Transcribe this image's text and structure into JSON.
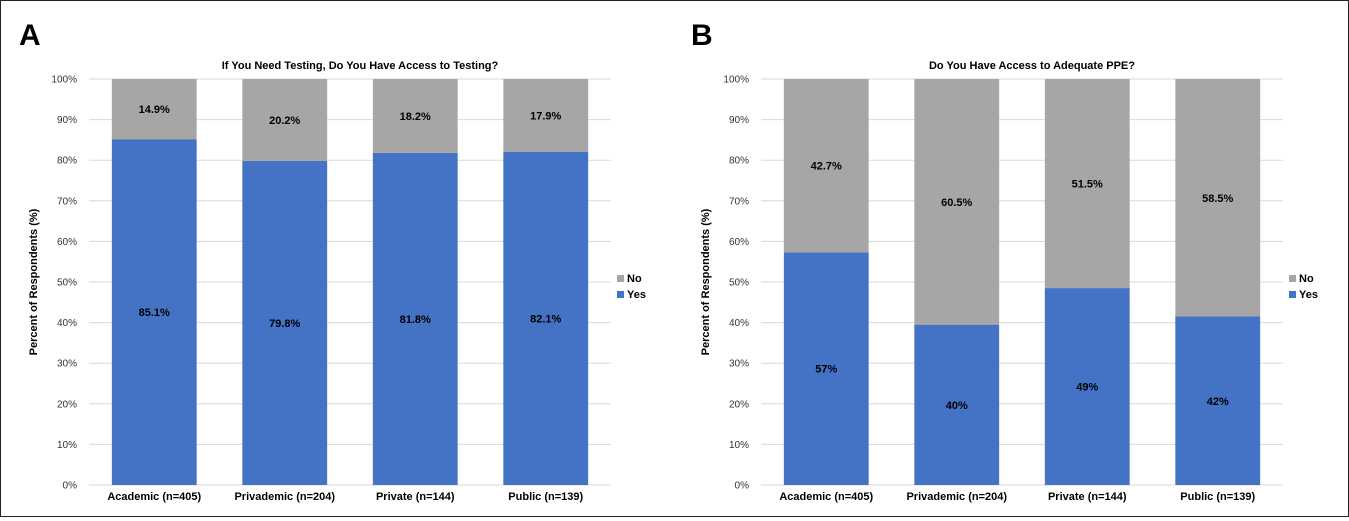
{
  "panels": [
    {
      "letter": "A",
      "legend": [
        "No",
        "Yes"
      ],
      "colors": {
        "No": "#a6a6a6",
        "Yes": "#4472c4"
      }
    },
    {
      "letter": "B",
      "legend": [
        "No",
        "Yes"
      ],
      "colors": {
        "No": "#a6a6a6",
        "Yes": "#4472c4"
      }
    }
  ],
  "chart_data": [
    {
      "type": "bar",
      "stacked": true,
      "title": "If You Need Testing, Do You Have Access to Testing?",
      "xlabel": "",
      "ylabel": "Percent of Respondents (%)",
      "ylim": [
        0,
        100
      ],
      "yticks": [
        "0%",
        "10%",
        "20%",
        "30%",
        "40%",
        "50%",
        "60%",
        "70%",
        "80%",
        "90%",
        "100%"
      ],
      "grid": true,
      "legend_position": "right",
      "categories": [
        "Academic (n=405)",
        "Privademic (n=204)",
        "Private (n=144)",
        "Public (n=139)"
      ],
      "series": [
        {
          "name": "Yes",
          "values": [
            85.1,
            79.8,
            81.8,
            82.1
          ],
          "labels": [
            "85.1%",
            "79.8%",
            "81.8%",
            "82.1%"
          ]
        },
        {
          "name": "No",
          "values": [
            14.9,
            20.2,
            18.2,
            17.9
          ],
          "labels": [
            "14.9%",
            "20.2%",
            "18.2%",
            "17.9%"
          ]
        }
      ]
    },
    {
      "type": "bar",
      "stacked": true,
      "title": "Do You Have Access to Adequate PPE?",
      "xlabel": "",
      "ylabel": "Percent of Respondents (%)",
      "ylim": [
        0,
        100
      ],
      "yticks": [
        "0%",
        "10%",
        "20%",
        "30%",
        "40%",
        "50%",
        "60%",
        "70%",
        "80%",
        "90%",
        "100%"
      ],
      "grid": true,
      "legend_position": "right",
      "categories": [
        "Academic (n=405)",
        "Privademic (n=204)",
        "Private (n=144)",
        "Public (n=139)"
      ],
      "series": [
        {
          "name": "Yes",
          "values": [
            57.3,
            39.5,
            48.5,
            41.5
          ],
          "labels": [
            "57%",
            "40%",
            "49%",
            "42%"
          ]
        },
        {
          "name": "No",
          "values": [
            42.7,
            60.5,
            51.5,
            58.5
          ],
          "labels": [
            "42.7%",
            "60.5%",
            "51.5%",
            "58.5%"
          ]
        }
      ]
    }
  ]
}
